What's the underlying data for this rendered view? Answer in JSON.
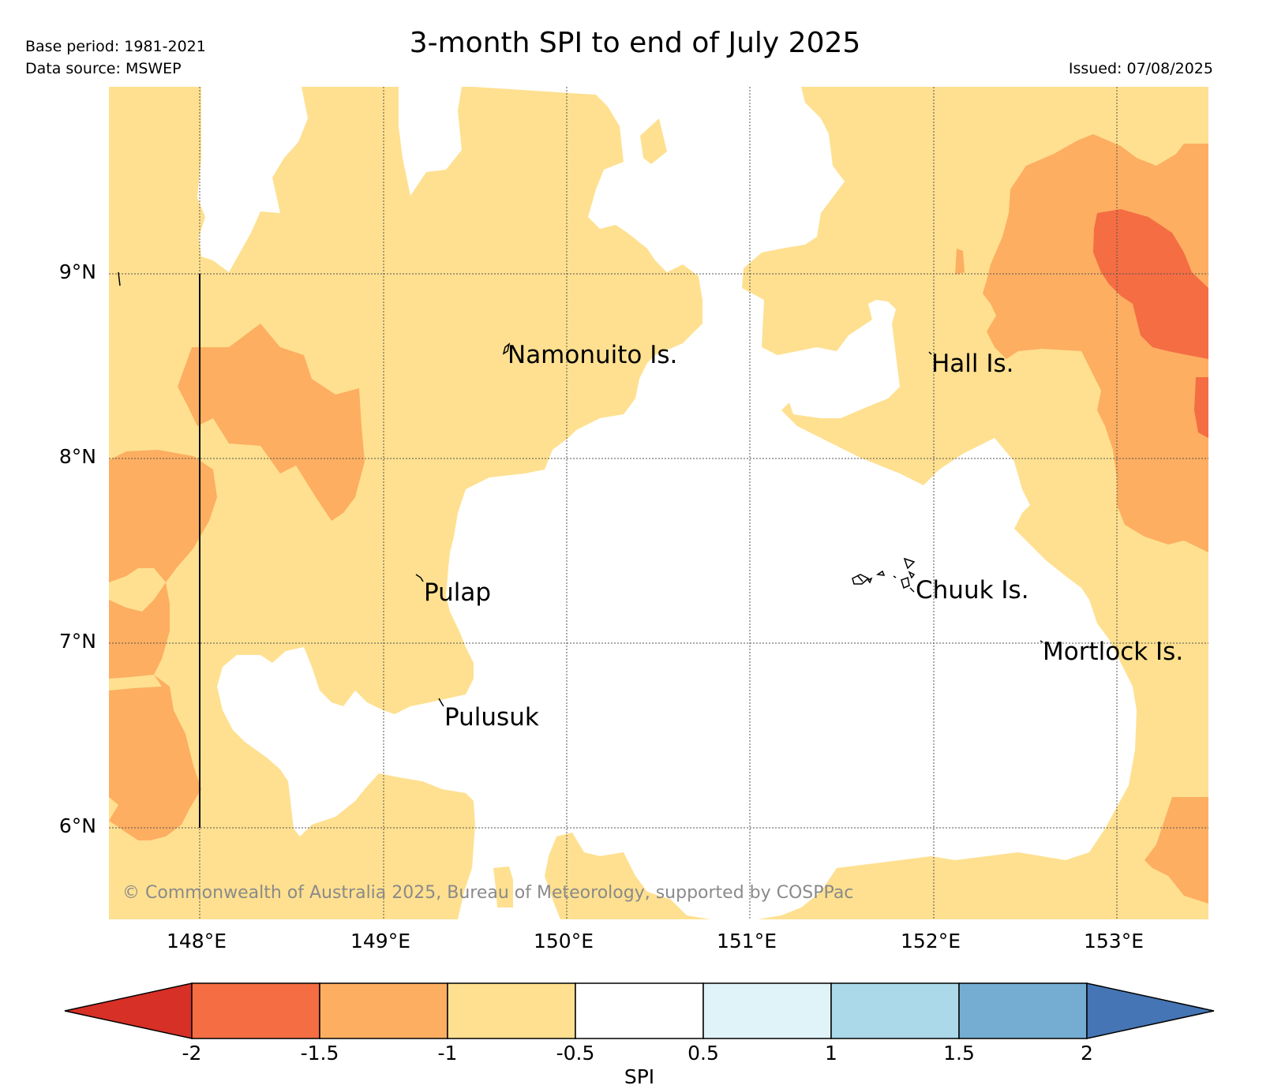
{
  "header": {
    "base_period": "Base period: 1981-2021",
    "data_source": "Data source: MSWEP",
    "title": "3-month SPI to end of July 2025",
    "issued": "Issued: 07/08/2025"
  },
  "map": {
    "longitude_labels": [
      "148°E",
      "149°E",
      "150°E",
      "151°E",
      "152°E",
      "153°E"
    ],
    "latitude_labels": [
      "9°N",
      "8°N",
      "7°N",
      "6°N"
    ],
    "places": [
      "Namonuito Is.",
      "Hall Is.",
      "Pulap",
      "Chuuk Is.",
      "Mortlock Is.",
      "Pulusuk"
    ],
    "copyright": "© Commonwealth of Australia 2025, Bureau of Meteorology, supported by COSPPac",
    "class_colors": {
      "below_-2": "#d73027",
      "-2_to_-1.5": "#f46d43",
      "-1.5_to_-1": "#fdae61",
      "-1_to_-0.5": "#fee090",
      "-0.5_to_0.5": "#ffffff",
      "0.5_to_1": "#e0f3f8",
      "1_to_1.5": "#abd9e9",
      "1.5_to_2": "#74add1",
      "above_2": "#4575b4"
    }
  },
  "colorbar": {
    "label": "SPI",
    "ticks": [
      "-2",
      "-1.5",
      "-1",
      "-0.5",
      "0.5",
      "1",
      "1.5",
      "2"
    ]
  }
}
